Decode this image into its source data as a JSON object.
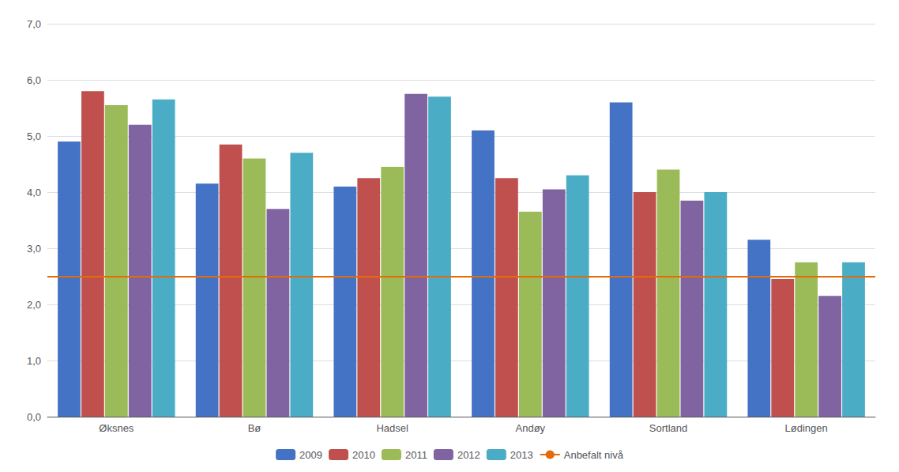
{
  "chart_data": {
    "type": "bar",
    "categories": [
      "Øksnes",
      "Bø",
      "Hadsel",
      "Andøy",
      "Sortland",
      "Lødingen"
    ],
    "series": [
      {
        "name": "2009",
        "color": "#4472C4",
        "values": [
          4.9,
          4.15,
          4.1,
          5.1,
          5.6,
          3.15
        ]
      },
      {
        "name": "2010",
        "color": "#C0504D",
        "values": [
          5.8,
          4.85,
          4.25,
          4.25,
          4.0,
          2.45
        ]
      },
      {
        "name": "2011",
        "color": "#9BBB59",
        "values": [
          5.55,
          4.6,
          4.45,
          3.65,
          4.4,
          2.75
        ]
      },
      {
        "name": "2012",
        "color": "#8064A2",
        "values": [
          5.2,
          3.7,
          5.75,
          4.05,
          3.85,
          2.15
        ]
      },
      {
        "name": "2013",
        "color": "#4BACC6",
        "values": [
          5.65,
          4.7,
          5.7,
          4.3,
          4.0,
          2.75
        ]
      }
    ],
    "reference_lines": [
      {
        "name": "Anbefalt nivå",
        "value": 2.5,
        "color": "#E36C09"
      }
    ],
    "ylim": [
      0,
      7.0
    ],
    "yticks": [
      {
        "value": 0.0,
        "label": "0,0"
      },
      {
        "value": 1.0,
        "label": "1,0"
      },
      {
        "value": 2.0,
        "label": "2,0"
      },
      {
        "value": 3.0,
        "label": "3,0"
      },
      {
        "value": 4.0,
        "label": "4,0"
      },
      {
        "value": 5.0,
        "label": "5,0"
      },
      {
        "value": 6.0,
        "label": "6,0"
      },
      {
        "value": 7.0,
        "label": "7,0"
      }
    ],
    "grid": true,
    "legend": "bottom"
  }
}
